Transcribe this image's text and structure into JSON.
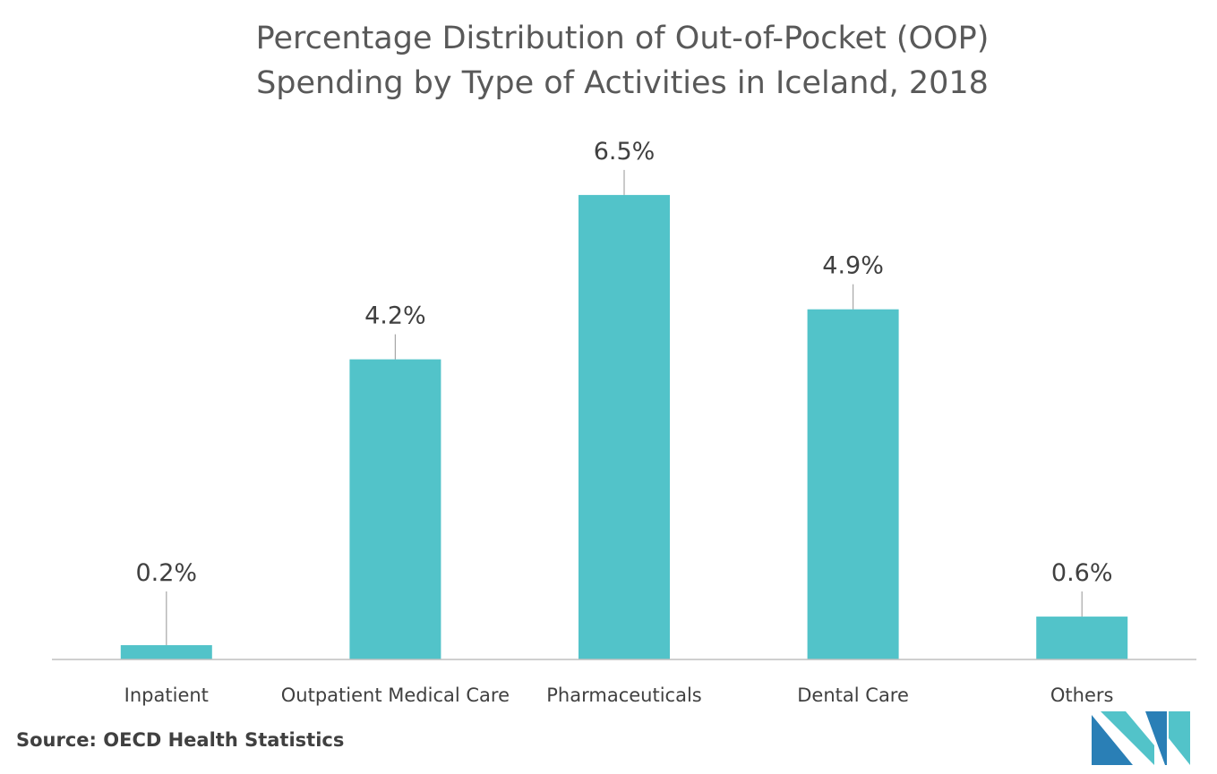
{
  "chart_data": {
    "type": "bar",
    "title_lines": [
      "Percentage Distribution of Out-of-Pocket (OOP)",
      "Spending by Type of Activities in Iceland, 2018"
    ],
    "categories": [
      "Inpatient",
      "Outpatient Medical Care",
      "Pharmaceuticals",
      "Dental Care",
      "Others"
    ],
    "values": [
      0.2,
      4.2,
      6.5,
      4.9,
      0.6
    ],
    "value_labels": [
      "0.2%",
      "4.2%",
      "6.5%",
      "4.9%",
      "0.6%"
    ],
    "xlabel": "",
    "ylabel": "",
    "ylim": [
      0,
      7.2
    ],
    "grid": false,
    "bar_color": "#52c3c9"
  },
  "footer": {
    "source": "Source: OECD Health Statistics"
  },
  "logo": {
    "icon": "mordor-intelligence-logo-icon",
    "colors": [
      "#2a7fb6",
      "#52c3c9"
    ]
  }
}
